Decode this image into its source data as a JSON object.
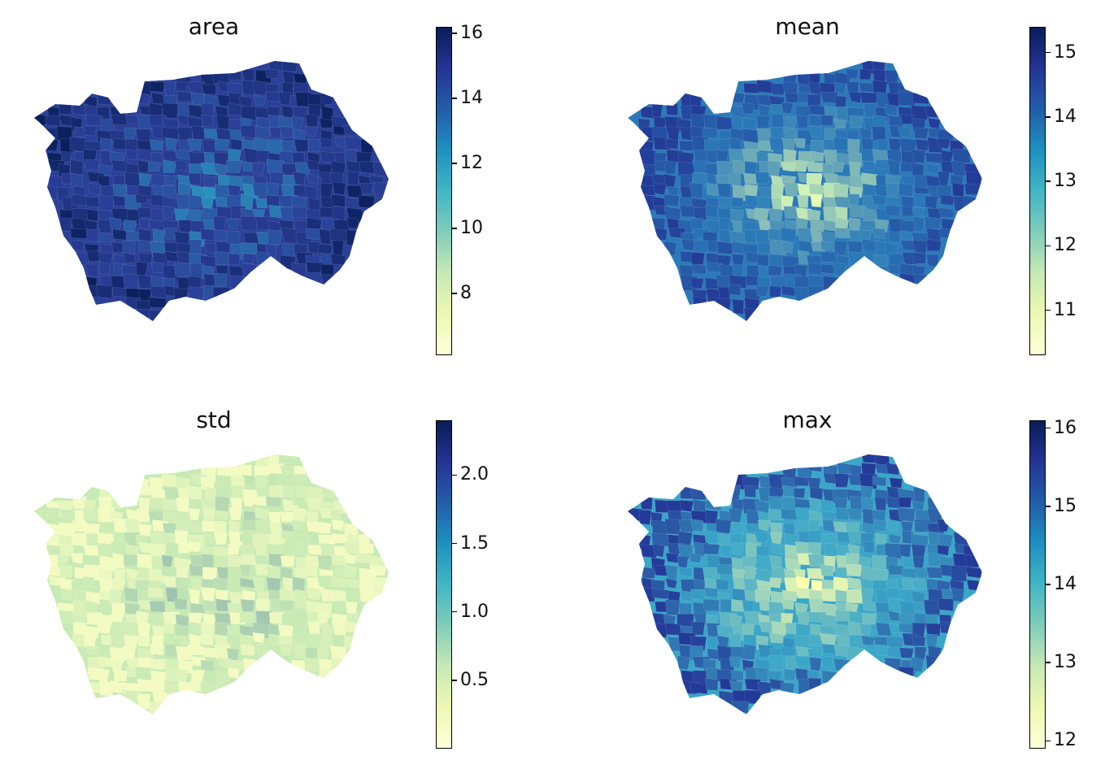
{
  "panels": [
    {
      "title": "area",
      "colorbar": {
        "min": 6.1,
        "max": 16.2,
        "ticks": [
          "8",
          "10",
          "12",
          "14",
          "16"
        ]
      },
      "base_color": "#2a3f98",
      "hot_color": "#0a1f5c",
      "cold_color": "#29a3c6"
    },
    {
      "title": "mean",
      "colorbar": {
        "min": 10.3,
        "max": 15.4,
        "ticks": [
          "11",
          "12",
          "13",
          "14",
          "15"
        ]
      },
      "base_color": "#2a7ab8",
      "hot_color": "#223c98",
      "cold_color": "#bfe6b6"
    },
    {
      "title": "std",
      "colorbar": {
        "min": 0.0,
        "max": 2.4,
        "ticks": [
          "0.5",
          "1.0",
          "1.5",
          "2.0"
        ]
      },
      "base_color": "#c8eab4",
      "hot_color": "#2a58a6",
      "cold_color": "#f3fbc2"
    },
    {
      "title": "max",
      "colorbar": {
        "min": 11.9,
        "max": 16.1,
        "ticks": [
          "12",
          "13",
          "14",
          "15",
          "16"
        ]
      },
      "base_color": "#3aa6c8",
      "hot_color": "#243a98",
      "cold_color": "#e3f4b2"
    }
  ],
  "colormap": [
    "#ffffd9",
    "#edf8b1",
    "#c7e9b4",
    "#7fcdbb",
    "#41b6c4",
    "#1d91c0",
    "#225ea8",
    "#253494",
    "#081d58"
  ]
}
